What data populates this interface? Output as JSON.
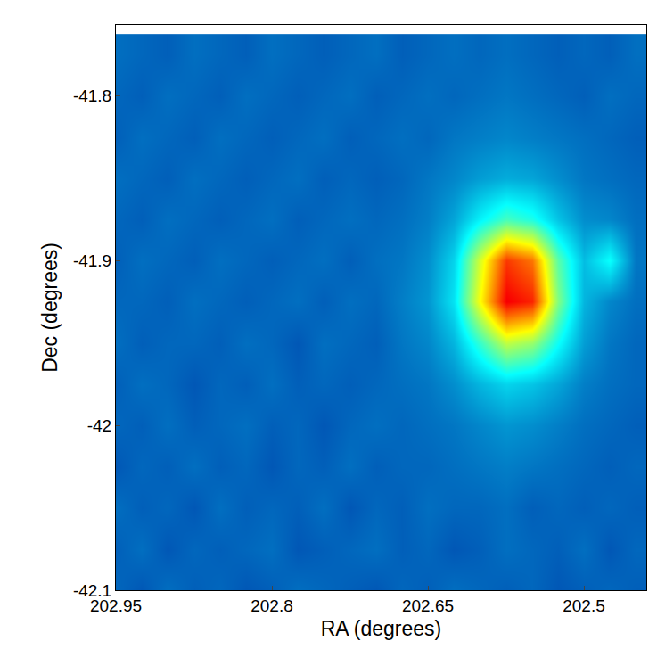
{
  "chart_data": {
    "type": "heatmap",
    "x_label": "RA (degrees)",
    "y_label": "Dec (degrees)",
    "xlim": [
      202.95,
      202.44
    ],
    "ylim": [
      -42.1,
      -41.757
    ],
    "xticks": [
      202.95,
      202.8,
      202.65,
      202.5
    ],
    "yticks": [
      -41.8,
      -41.9,
      -42,
      -42.1
    ],
    "grid": false,
    "color_range": [
      0,
      10
    ],
    "x": [
      202.95,
      202.925,
      202.9,
      202.875,
      202.85,
      202.825,
      202.8,
      202.775,
      202.75,
      202.725,
      202.7,
      202.675,
      202.65,
      202.625,
      202.6,
      202.575,
      202.55,
      202.525,
      202.5,
      202.475,
      202.45
    ],
    "y": [
      -42.1,
      -42.075,
      -42.05,
      -42.025,
      -42.0,
      -41.975,
      -41.95,
      -41.925,
      -41.9,
      -41.875,
      -41.85,
      -41.825,
      -41.8,
      -41.775
    ],
    "cells": [
      [
        1.8,
        1.6,
        1.9,
        1.7,
        1.8,
        1.6,
        1.7,
        1.9,
        1.8,
        1.7,
        1.6,
        1.8,
        1.7,
        1.9,
        1.8,
        1.7,
        1.8,
        1.6,
        1.7,
        1.8,
        1.7
      ],
      [
        1.7,
        1.9,
        1.6,
        1.8,
        1.7,
        1.8,
        1.9,
        1.6,
        1.7,
        1.8,
        1.9,
        1.7,
        1.8,
        1.6,
        1.7,
        1.9,
        1.8,
        1.7,
        1.9,
        1.6,
        1.8
      ],
      [
        1.9,
        1.7,
        1.8,
        1.6,
        1.9,
        1.7,
        1.8,
        1.7,
        1.9,
        1.6,
        1.8,
        1.7,
        1.9,
        1.8,
        1.8,
        1.9,
        1.7,
        1.8,
        1.7,
        1.8,
        1.7
      ],
      [
        1.6,
        1.8,
        1.7,
        1.9,
        1.7,
        1.8,
        1.6,
        1.8,
        1.7,
        1.9,
        1.7,
        1.8,
        1.8,
        1.9,
        2.0,
        2.1,
        2.0,
        1.9,
        1.8,
        1.7,
        1.8
      ],
      [
        1.8,
        1.7,
        1.9,
        1.7,
        1.8,
        1.9,
        1.7,
        1.8,
        1.6,
        1.8,
        1.9,
        1.8,
        1.9,
        2.0,
        2.2,
        2.4,
        2.3,
        2.1,
        1.9,
        1.8,
        1.7
      ],
      [
        1.7,
        1.9,
        1.8,
        1.6,
        1.8,
        1.7,
        1.9,
        1.7,
        1.8,
        1.7,
        1.8,
        1.9,
        2.0,
        2.3,
        2.8,
        3.2,
        3.0,
        2.6,
        2.1,
        1.9,
        1.8
      ],
      [
        1.9,
        1.7,
        1.8,
        1.8,
        1.7,
        1.9,
        1.8,
        1.6,
        1.9,
        1.8,
        1.7,
        2.0,
        2.2,
        2.8,
        4.2,
        5.6,
        5.2,
        3.8,
        2.5,
        2.0,
        1.8
      ],
      [
        1.8,
        1.8,
        1.7,
        1.9,
        1.8,
        1.7,
        1.8,
        1.9,
        1.7,
        1.9,
        1.8,
        2.1,
        2.4,
        3.4,
        6.2,
        8.8,
        8.4,
        5.0,
        2.8,
        2.2,
        1.9
      ],
      [
        1.7,
        1.9,
        1.8,
        1.7,
        1.9,
        1.8,
        1.7,
        1.8,
        1.9,
        1.7,
        1.9,
        2.0,
        2.3,
        3.2,
        5.8,
        8.2,
        7.6,
        4.6,
        2.9,
        3.8,
        2.0
      ],
      [
        1.8,
        1.7,
        1.9,
        1.8,
        1.7,
        1.8,
        1.9,
        1.7,
        1.8,
        1.9,
        1.8,
        1.9,
        2.1,
        2.6,
        3.6,
        4.4,
        4.0,
        3.0,
        2.3,
        2.2,
        1.9
      ],
      [
        1.9,
        1.8,
        1.7,
        1.9,
        1.8,
        1.7,
        1.8,
        1.9,
        1.7,
        1.8,
        1.7,
        1.8,
        2.0,
        2.2,
        2.5,
        2.7,
        2.6,
        2.3,
        2.0,
        1.9,
        1.8
      ],
      [
        1.7,
        1.9,
        1.8,
        1.7,
        1.9,
        1.8,
        1.7,
        1.8,
        1.9,
        1.7,
        1.8,
        1.9,
        1.8,
        2.0,
        2.1,
        2.2,
        2.1,
        2.0,
        1.9,
        1.8,
        1.7
      ],
      [
        1.8,
        1.7,
        1.9,
        1.8,
        1.7,
        1.9,
        1.8,
        1.7,
        1.8,
        1.9,
        1.7,
        1.8,
        1.9,
        1.8,
        1.9,
        2.0,
        1.9,
        1.8,
        1.7,
        1.9,
        1.8
      ],
      [
        1.9,
        1.8,
        1.7,
        1.9,
        1.8,
        1.7,
        1.9,
        1.8,
        1.7,
        1.8,
        1.9,
        1.7,
        1.8,
        1.9,
        1.8,
        1.9,
        1.8,
        1.7,
        1.8,
        1.7,
        1.9
      ]
    ]
  }
}
